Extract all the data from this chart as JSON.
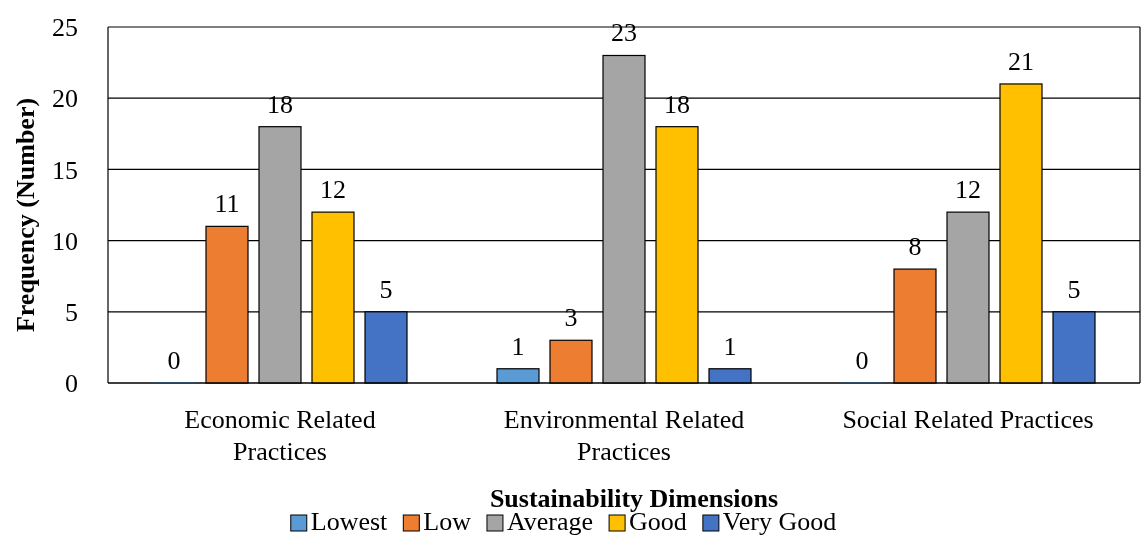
{
  "chart_data": {
    "type": "bar",
    "xlabel": "Sustainability Dimensions",
    "ylabel": "Frequency (Number)",
    "categories": [
      "Economic Related Practices",
      "Environmental Related Practices",
      "Social Related Practices"
    ],
    "series": [
      {
        "name": "Lowest",
        "color": "#5b9bd5",
        "values": [
          0,
          1,
          0
        ]
      },
      {
        "name": "Low",
        "color": "#ed7d31",
        "values": [
          11,
          3,
          8
        ]
      },
      {
        "name": "Average",
        "color": "#a5a5a5",
        "values": [
          18,
          23,
          12
        ]
      },
      {
        "name": "Good",
        "color": "#ffc000",
        "values": [
          12,
          18,
          21
        ]
      },
      {
        "name": "Very Good",
        "color": "#4472c4",
        "values": [
          5,
          1,
          5
        ]
      }
    ],
    "ylim": [
      0,
      25
    ],
    "yticks": [
      0,
      5,
      10,
      15,
      20,
      25
    ],
    "grid": "y",
    "legend": "bottom",
    "data_labels": true
  }
}
